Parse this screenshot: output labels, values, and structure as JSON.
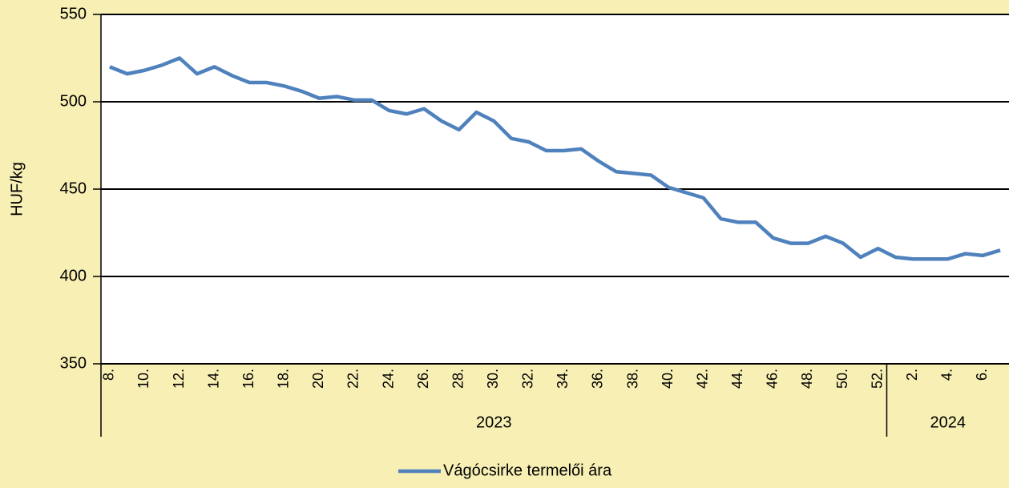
{
  "chart_data": {
    "type": "line",
    "y_axis_label": "HUF/kg",
    "category_groups": [
      {
        "label": "2023",
        "categories": [
          "8.",
          null,
          "10.",
          null,
          "12.",
          null,
          "14.",
          null,
          "16.",
          null,
          "18.",
          null,
          "20.",
          null,
          "22.",
          null,
          "24.",
          null,
          "26.",
          null,
          "28.",
          null,
          "30.",
          null,
          "32.",
          null,
          "34.",
          null,
          "36.",
          null,
          "38.",
          null,
          "40.",
          null,
          "42.",
          null,
          "44.",
          null,
          "46.",
          null,
          "48.",
          null,
          "50.",
          null,
          "52."
        ]
      },
      {
        "label": "2024",
        "categories": [
          null,
          "2.",
          null,
          "4.",
          null,
          "6.",
          null
        ]
      }
    ],
    "series": [
      {
        "name": "Vágócsirke termelői ára",
        "color": "#4f81bd",
        "values": [
          520,
          516,
          518,
          521,
          525,
          516,
          520,
          515,
          511,
          511,
          509,
          506,
          502,
          503,
          501,
          501,
          495,
          493,
          496,
          489,
          484,
          494,
          489,
          479,
          477,
          472,
          472,
          473,
          466,
          460,
          459,
          458,
          451,
          448,
          445,
          433,
          431,
          431,
          422,
          419,
          419,
          423,
          419,
          411,
          416,
          411,
          410,
          410,
          410,
          413,
          412,
          415
        ]
      }
    ],
    "ylim": [
      350,
      550
    ],
    "yticks": [
      350,
      400,
      450,
      500,
      550
    ],
    "grid": true,
    "legend": "bottom"
  }
}
